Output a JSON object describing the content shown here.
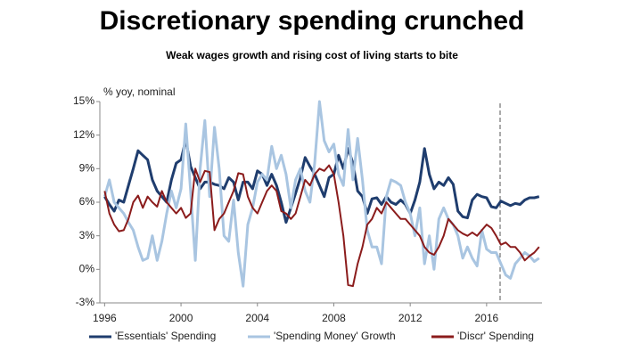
{
  "chart_data": {
    "type": "line",
    "title": "Discretionary spending crunched",
    "subtitle": "Weak wages growth and rising cost of living starts to bite",
    "y_label": "% yoy, nominal",
    "x": [
      1996,
      1996.25,
      1996.5,
      1996.75,
      1997,
      1997.25,
      1997.5,
      1997.75,
      1998,
      1998.25,
      1998.5,
      1998.75,
      1999,
      1999.25,
      1999.5,
      1999.75,
      2000,
      2000.25,
      2000.5,
      2000.75,
      2001,
      2001.25,
      2001.5,
      2001.75,
      2002,
      2002.25,
      2002.5,
      2002.75,
      2003,
      2003.25,
      2003.5,
      2003.75,
      2004,
      2004.25,
      2004.5,
      2004.75,
      2005,
      2005.25,
      2005.5,
      2005.75,
      2006,
      2006.25,
      2006.5,
      2006.75,
      2007,
      2007.25,
      2007.5,
      2007.75,
      2008,
      2008.25,
      2008.5,
      2008.75,
      2009,
      2009.25,
      2009.5,
      2009.75,
      2010,
      2010.25,
      2010.5,
      2010.75,
      2011,
      2011.25,
      2011.5,
      2011.75,
      2012,
      2012.25,
      2012.5,
      2012.75,
      2013,
      2013.25,
      2013.5,
      2013.75,
      2014,
      2014.25,
      2014.5,
      2014.75,
      2015,
      2015.25,
      2015.5,
      2015.75,
      2016,
      2016.25,
      2016.5,
      2016.75,
      2017,
      2017.25,
      2017.5,
      2017.75,
      2018,
      2018.25,
      2018.5,
      2018.75
    ],
    "series": [
      {
        "name": "'Essentials' Spending",
        "color": "#1f3d6e",
        "width": 3,
        "values": [
          6.5,
          5.8,
          5.2,
          6.2,
          6.0,
          7.5,
          9.0,
          10.6,
          10.2,
          9.8,
          8.0,
          7.0,
          6.5,
          6.0,
          8.0,
          9.5,
          9.8,
          11.6,
          9.2,
          8.2,
          7.2,
          7.8,
          7.8,
          7.6,
          7.5,
          7.2,
          8.2,
          7.8,
          6.2,
          7.8,
          7.8,
          7.2,
          8.8,
          8.5,
          7.5,
          8.5,
          7.5,
          6.0,
          4.2,
          5.5,
          6.8,
          8.2,
          10.0,
          9.2,
          8.5,
          7.5,
          6.5,
          8.2,
          8.5,
          10.2,
          9.0,
          10.8,
          9.5,
          7.0,
          6.5,
          5.0,
          6.3,
          6.4,
          5.8,
          6.5,
          6.0,
          5.8,
          6.2,
          5.8,
          5.0,
          6.2,
          7.8,
          10.8,
          8.5,
          7.2,
          7.8,
          7.5,
          8.2,
          7.6,
          5.2,
          4.7,
          4.6,
          6.2,
          6.7,
          6.5,
          6.4,
          5.6,
          5.5,
          6.1,
          5.9,
          5.7,
          5.9,
          5.8,
          6.2,
          6.4,
          6.4,
          6.5
        ]
      },
      {
        "name": "'Spending Money' Growth",
        "color": "#a9c5e1",
        "width": 3,
        "values": [
          6.5,
          8.0,
          6.0,
          5.5,
          5.0,
          4.2,
          3.5,
          2.0,
          0.8,
          1.0,
          3.0,
          0.8,
          2.5,
          5.0,
          7.0,
          5.5,
          7.2,
          13.0,
          7.0,
          0.8,
          9.0,
          13.3,
          6.5,
          12.7,
          9.0,
          3.0,
          2.5,
          6.2,
          1.5,
          -1.5,
          4.0,
          5.5,
          7.8,
          8.5,
          8.0,
          11.0,
          9.0,
          10.2,
          8.5,
          5.5,
          8.0,
          9.0,
          7.0,
          6.0,
          9.5,
          15.0,
          11.5,
          10.5,
          11.2,
          8.5,
          7.5,
          12.5,
          8.0,
          11.7,
          8.0,
          3.5,
          2.0,
          2.0,
          0.5,
          6.5,
          8.0,
          7.8,
          7.5,
          6.0,
          5.0,
          3.0,
          5.5,
          0.5,
          3.0,
          0.0,
          4.5,
          5.5,
          4.5,
          4.0,
          3.0,
          1.0,
          2.0,
          1.0,
          0.3,
          3.5,
          1.8,
          1.5,
          1.5,
          0.5,
          -0.5,
          -0.8,
          0.5,
          1.0,
          1.5,
          1.2,
          0.7,
          1.0
        ]
      },
      {
        "name": "'Discr' Spending",
        "color": "#8b1c1c",
        "width": 2,
        "values": [
          7.0,
          5.0,
          4.0,
          3.4,
          3.5,
          4.5,
          6.0,
          6.6,
          5.5,
          6.5,
          6.0,
          5.6,
          7.0,
          6.0,
          5.5,
          5.0,
          5.5,
          4.6,
          5.0,
          9.0,
          7.8,
          8.8,
          8.7,
          3.5,
          4.5,
          5.0,
          6.0,
          7.0,
          8.6,
          8.5,
          6.5,
          5.5,
          5.0,
          6.0,
          7.0,
          7.5,
          7.0,
          5.2,
          5.0,
          4.5,
          5.0,
          6.5,
          8.0,
          7.5,
          8.5,
          9.0,
          8.8,
          9.3,
          8.5,
          6.0,
          3.0,
          -1.4,
          -1.5,
          0.5,
          2.0,
          4.0,
          4.5,
          5.5,
          5.0,
          6.0,
          5.5,
          5.0,
          4.5,
          4.5,
          4.0,
          3.5,
          3.0,
          2.0,
          1.5,
          1.3,
          2.0,
          3.0,
          4.5,
          4.0,
          3.5,
          3.2,
          3.0,
          3.3,
          3.0,
          3.5,
          4.0,
          3.7,
          3.0,
          2.2,
          2.4,
          2.0,
          2.0,
          1.5,
          0.8,
          1.2,
          1.5,
          2.0
        ]
      }
    ],
    "xlim": [
      1995.75,
      2018.9
    ],
    "xticks": [
      1996,
      2000,
      2004,
      2008,
      2012,
      2016
    ],
    "ylim": [
      -3,
      15
    ],
    "yticks": [
      {
        "value": -3,
        "label": "-3%"
      },
      {
        "value": 0,
        "label": "0%"
      },
      {
        "value": 3,
        "label": "3%"
      },
      {
        "value": 6,
        "label": "6%"
      },
      {
        "value": 9,
        "label": "9%"
      },
      {
        "value": 12,
        "label": "12%"
      },
      {
        "value": 15,
        "label": "15%"
      }
    ],
    "grid": false,
    "legend": "bottom"
  }
}
